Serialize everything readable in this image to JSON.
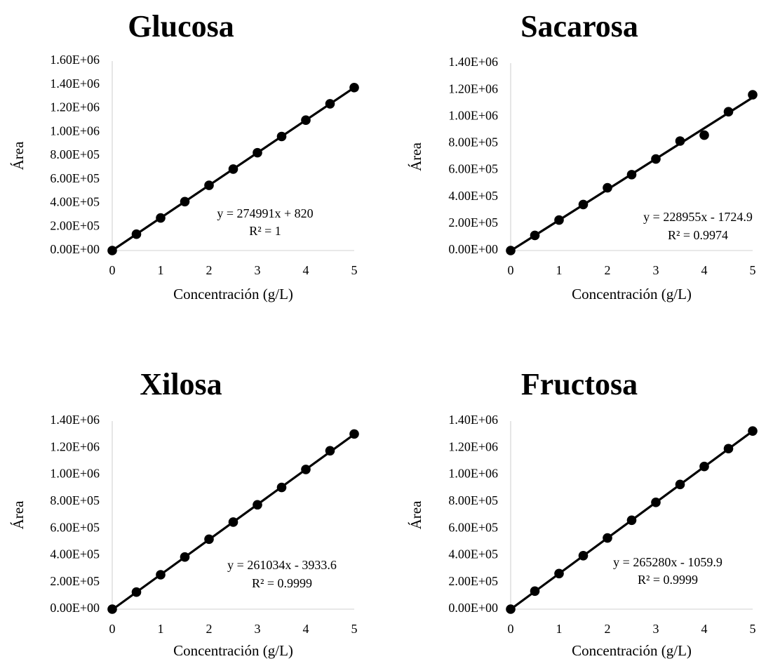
{
  "chart_data": [
    {
      "type": "scatter",
      "title": "Glucosa",
      "xlabel": "Concentración (g/L)",
      "ylabel": "Área",
      "xlim": [
        0,
        5
      ],
      "ylim": [
        0,
        1600000
      ],
      "x_ticks": [
        "0",
        "1",
        "2",
        "3",
        "4",
        "5"
      ],
      "y_ticks": [
        "0.00E+00",
        "2.00E+05",
        "4.00E+05",
        "6.00E+05",
        "8.00E+05",
        "1.00E+06",
        "1.20E+06",
        "1.40E+06",
        "1.60E+06"
      ],
      "x": [
        0,
        0.5,
        1,
        1.5,
        2,
        2.5,
        3,
        3.5,
        4,
        4.5,
        5
      ],
      "y": [
        0,
        138000,
        275000,
        413000,
        551000,
        688000,
        826000,
        963000,
        1101000,
        1239000,
        1376000
      ],
      "trendline": {
        "slope": 274991,
        "intercept": 820
      },
      "equation": "y = 274991x + 820",
      "r2": "R² = 1",
      "grid": false,
      "legend": "none"
    },
    {
      "type": "scatter",
      "title": "Sacarosa",
      "xlabel": "Concentración (g/L)",
      "ylabel": "Área",
      "xlim": [
        0,
        5
      ],
      "ylim": [
        0,
        1400000
      ],
      "x_ticks": [
        "0",
        "1",
        "2",
        "3",
        "4",
        "5"
      ],
      "y_ticks": [
        "0.00E+00",
        "2.00E+05",
        "4.00E+05",
        "6.00E+05",
        "8.00E+05",
        "1.00E+06",
        "1.20E+06",
        "1.40E+06"
      ],
      "x": [
        0,
        0.5,
        1,
        1.5,
        2,
        2.5,
        3,
        3.5,
        4,
        4.5,
        5
      ],
      "y": [
        0,
        113000,
        228000,
        344000,
        469000,
        567000,
        684000,
        818000,
        862000,
        1037000,
        1164000
      ],
      "trendline": {
        "slope": 228955,
        "intercept": -1724.9
      },
      "equation": "y = 228955x - 1724.9",
      "r2": "R² = 0.9974",
      "grid": false,
      "legend": "none"
    },
    {
      "type": "scatter",
      "title": "Xilosa",
      "xlabel": "Concentración (g/L)",
      "ylabel": "Área",
      "xlim": [
        0,
        5
      ],
      "ylim": [
        0,
        1400000
      ],
      "x_ticks": [
        "0",
        "1",
        "2",
        "3",
        "4",
        "5"
      ],
      "y_ticks": [
        "0.00E+00",
        "2.00E+05",
        "4.00E+05",
        "6.00E+05",
        "8.00E+05",
        "1.00E+06",
        "1.20E+06",
        "1.40E+06"
      ],
      "x": [
        0,
        0.5,
        1,
        1.5,
        2,
        2.5,
        3,
        3.5,
        4,
        4.5,
        5
      ],
      "y": [
        0,
        127000,
        256000,
        388000,
        521000,
        648000,
        777000,
        906000,
        1040000,
        1179000,
        1304000
      ],
      "trendline": {
        "slope": 261034,
        "intercept": -3933.6
      },
      "equation": "y = 261034x - 3933.6",
      "r2": "R² = 0.9999",
      "grid": false,
      "legend": "none"
    },
    {
      "type": "scatter",
      "title": "Fructosa",
      "xlabel": "Concentración (g/L)",
      "ylabel": "Área",
      "xlim": [
        0,
        5
      ],
      "ylim": [
        0,
        1400000
      ],
      "x_ticks": [
        "0",
        "1",
        "2",
        "3",
        "4",
        "5"
      ],
      "y_ticks": [
        "0.00E+00",
        "2.00E+05",
        "4.00E+05",
        "6.00E+05",
        "8.00E+05",
        "1.00E+06",
        "1.20E+06",
        "1.40E+06"
      ],
      "x": [
        0,
        0.5,
        1,
        1.5,
        2,
        2.5,
        3,
        3.5,
        4,
        4.5,
        5
      ],
      "y": [
        0,
        134000,
        265000,
        398000,
        530000,
        662000,
        795000,
        928000,
        1062000,
        1195000,
        1326000
      ],
      "trendline": {
        "slope": 265280,
        "intercept": -1059.9
      },
      "equation": "y = 265280x - 1059.9",
      "r2": "R² = 0.9999",
      "grid": false,
      "legend": "none"
    }
  ]
}
